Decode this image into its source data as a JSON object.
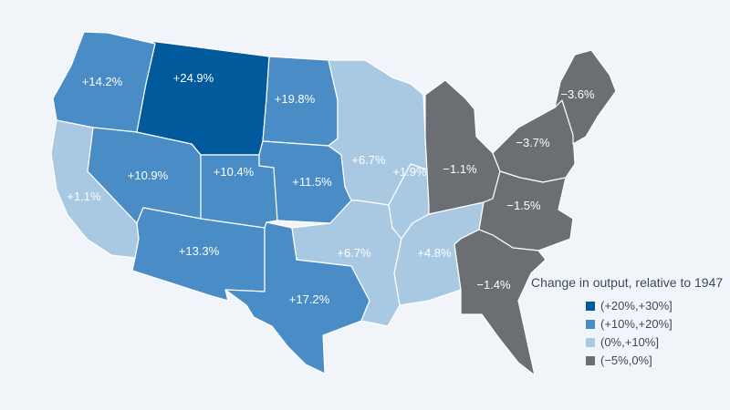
{
  "legend": {
    "title": "Change in output, relative to 1947",
    "items": [
      {
        "label": "(+20%,+30%]",
        "color": "#005a9c"
      },
      {
        "label": "(+10%,+20%]",
        "color": "#4a8cc6"
      },
      {
        "label": "(0%,+10%]",
        "color": "#a9c8e2"
      },
      {
        "label": "(−5%,0%]",
        "color": "#6b6e73"
      }
    ]
  },
  "regions": [
    {
      "id": "pacific-nw",
      "value": "+14.2%",
      "value_pct": 14.2,
      "class": 1
    },
    {
      "id": "california",
      "value": "+1.1%",
      "value_pct": 1.1,
      "class": 2
    },
    {
      "id": "great-basin",
      "value": "+10.9%",
      "value_pct": 10.9,
      "class": 1
    },
    {
      "id": "southwest",
      "value": "+13.3%",
      "value_pct": 13.3,
      "class": 1
    },
    {
      "id": "northern-rockies",
      "value": "+24.9%",
      "value_pct": 24.9,
      "class": 0
    },
    {
      "id": "colorado",
      "value": "+10.4%",
      "value_pct": 10.4,
      "class": 1
    },
    {
      "id": "northern-plains",
      "value": "+19.8%",
      "value_pct": 19.8,
      "class": 1
    },
    {
      "id": "central-plains",
      "value": "+11.5%",
      "value_pct": 11.5,
      "class": 1
    },
    {
      "id": "south-central",
      "value": "+17.2%",
      "value_pct": 17.2,
      "class": 1
    },
    {
      "id": "upper-midwest",
      "value": "+6.7%",
      "value_pct": 6.7,
      "class": 2
    },
    {
      "id": "lower-mississippi",
      "value": "+6.7%",
      "value_pct": 6.7,
      "class": 2
    },
    {
      "id": "illinois-indiana",
      "value": "+1.9%",
      "value_pct": 1.9,
      "class": 2
    },
    {
      "id": "tennessee-valley",
      "value": "+4.8%",
      "value_pct": 4.8,
      "class": 2
    },
    {
      "id": "great-lakes",
      "value": "−1.1%",
      "value_pct": -1.1,
      "class": 3
    },
    {
      "id": "mid-atlantic",
      "value": "−3.7%",
      "value_pct": -3.7,
      "class": 3
    },
    {
      "id": "new-england",
      "value": "−3.6%",
      "value_pct": -3.6,
      "class": 3
    },
    {
      "id": "virginia-carolinas",
      "value": "−1.5%",
      "value_pct": -1.5,
      "class": 3
    },
    {
      "id": "southeast",
      "value": "−1.4%",
      "value_pct": -1.4,
      "class": 3
    }
  ]
}
